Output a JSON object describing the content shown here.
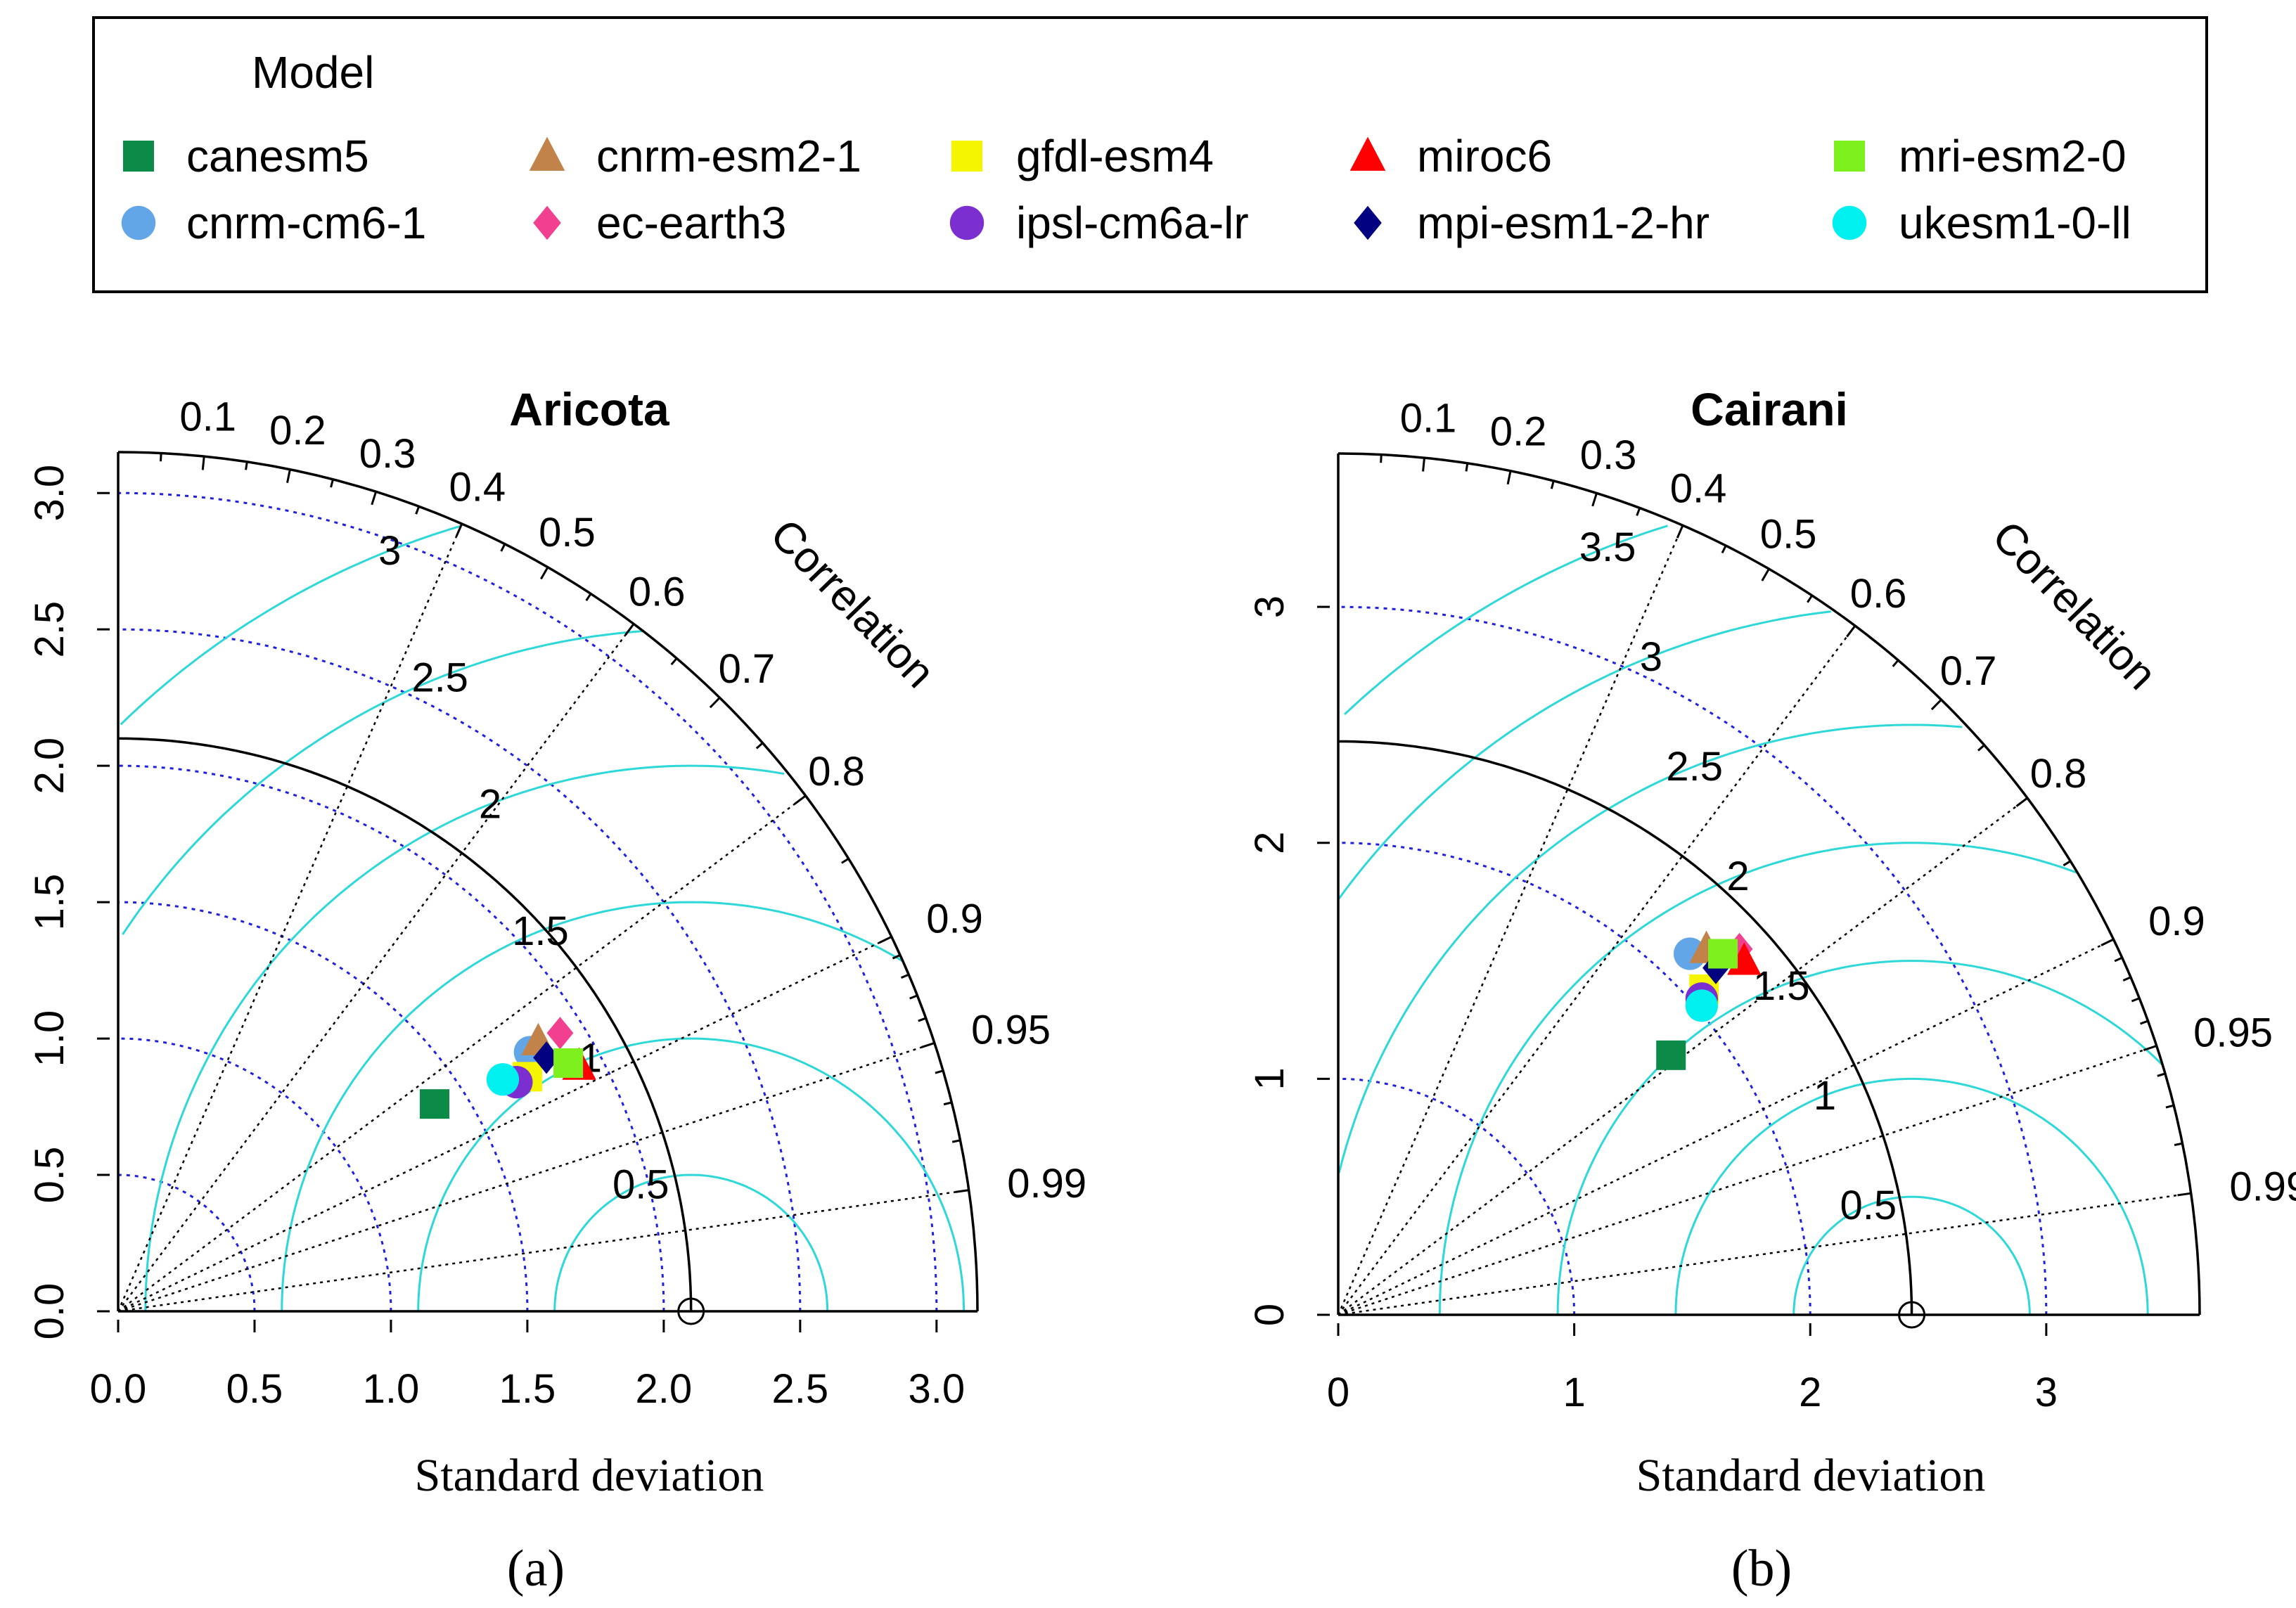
{
  "legend": {
    "title": "Model",
    "entries": [
      {
        "name": "canesm5",
        "color": "#0b8a48",
        "shape": "square"
      },
      {
        "name": "cnrm-esm2-1",
        "color": "#c1834a",
        "shape": "triangle"
      },
      {
        "name": "gfdl-esm4",
        "color": "#f5f500",
        "shape": "square"
      },
      {
        "name": "miroc6",
        "color": "#ff0000",
        "shape": "triangle"
      },
      {
        "name": "mri-esm2-0",
        "color": "#7ef01e",
        "shape": "square"
      },
      {
        "name": "cnrm-cm6-1",
        "color": "#62a6e8",
        "shape": "circle"
      },
      {
        "name": "ec-earth3",
        "color": "#f0408f",
        "shape": "diamond"
      },
      {
        "name": "ipsl-cm6a-lr",
        "color": "#7b2fd1",
        "shape": "circle"
      },
      {
        "name": "mpi-esm1-2-hr",
        "color": "#000080",
        "shape": "diamond"
      },
      {
        "name": "ukesm1-0-ll",
        "color": "#00f0f0",
        "shape": "circle"
      }
    ]
  },
  "chart_data": [
    {
      "type": "taylor",
      "panel_label": "(a)",
      "title": "Aricota",
      "xlabel": "Standard deviation",
      "correlation_label": "Correlation",
      "sd_max": 3.15,
      "ref_sd": 2.1,
      "sd_ticks": [
        "0.0",
        "0.5",
        "1.0",
        "1.5",
        "2.0",
        "2.5",
        "3.0"
      ],
      "sd_tick_values": [
        0,
        0.5,
        1.0,
        1.5,
        2.0,
        2.5,
        3.0
      ],
      "sd_contours": [
        0.5,
        1.0,
        1.5,
        2.0,
        2.5,
        3.0
      ],
      "rms_contours": [
        0.5,
        1,
        1.5,
        2,
        2.5,
        3
      ],
      "rms_labels": [
        "0.5",
        "1",
        "1.5",
        "2",
        "2.5",
        "3"
      ],
      "corr_labels": [
        "0.1",
        "0.2",
        "0.3",
        "0.4",
        "0.5",
        "0.6",
        "0.7",
        "0.8",
        "0.9",
        "0.95",
        "0.99"
      ],
      "corr_label_values": [
        0.1,
        0.2,
        0.3,
        0.4,
        0.5,
        0.6,
        0.7,
        0.8,
        0.9,
        0.95,
        0.99
      ],
      "corr_ray_values": [
        0.4,
        0.6,
        0.8,
        0.9,
        0.95,
        0.99
      ],
      "points": [
        {
          "model": "canesm5",
          "x": 1.16,
          "y": 0.76
        },
        {
          "model": "cnrm-cm6-1",
          "x": 1.51,
          "y": 0.95
        },
        {
          "model": "cnrm-esm2-1",
          "x": 1.54,
          "y": 0.99
        },
        {
          "model": "ec-earth3",
          "x": 1.62,
          "y": 1.02
        },
        {
          "model": "gfdl-esm4",
          "x": 1.5,
          "y": 0.86
        },
        {
          "model": "ipsl-cm6a-lr",
          "x": 1.46,
          "y": 0.84
        },
        {
          "model": "miroc6",
          "x": 1.69,
          "y": 0.9
        },
        {
          "model": "mpi-esm1-2-hr",
          "x": 1.57,
          "y": 0.93
        },
        {
          "model": "mri-esm2-0",
          "x": 1.65,
          "y": 0.91
        },
        {
          "model": "ukesm1-0-ll",
          "x": 1.41,
          "y": 0.85
        }
      ]
    },
    {
      "type": "taylor",
      "panel_label": "(b)",
      "title": "Cairani",
      "xlabel": "Standard deviation",
      "correlation_label": "Correlation",
      "sd_max": 3.65,
      "ref_sd": 2.43,
      "sd_ticks": [
        "0",
        "1",
        "2",
        "3"
      ],
      "sd_tick_values": [
        0,
        1,
        2,
        3
      ],
      "sd_contours": [
        1,
        2,
        3
      ],
      "rms_contours": [
        0.5,
        1,
        1.5,
        2,
        2.5,
        3,
        3.5
      ],
      "rms_labels": [
        "0.5",
        "1",
        "1.5",
        "2",
        "2.5",
        "3",
        "3.5"
      ],
      "corr_labels": [
        "0.1",
        "0.2",
        "0.3",
        "0.4",
        "0.5",
        "0.6",
        "0.7",
        "0.8",
        "0.9",
        "0.95",
        "0.99"
      ],
      "corr_label_values": [
        0.1,
        0.2,
        0.3,
        0.4,
        0.5,
        0.6,
        0.7,
        0.8,
        0.9,
        0.95,
        0.99
      ],
      "corr_ray_values": [
        0.4,
        0.6,
        0.8,
        0.9,
        0.95,
        0.99
      ],
      "points": [
        {
          "model": "canesm5",
          "x": 1.41,
          "y": 1.1
        },
        {
          "model": "cnrm-cm6-1",
          "x": 1.49,
          "y": 1.53
        },
        {
          "model": "cnrm-esm2-1",
          "x": 1.56,
          "y": 1.55
        },
        {
          "model": "ec-earth3",
          "x": 1.7,
          "y": 1.55
        },
        {
          "model": "gfdl-esm4",
          "x": 1.55,
          "y": 1.38
        },
        {
          "model": "ipsl-cm6a-lr",
          "x": 1.54,
          "y": 1.34
        },
        {
          "model": "miroc6",
          "x": 1.72,
          "y": 1.5
        },
        {
          "model": "mpi-esm1-2-hr",
          "x": 1.6,
          "y": 1.47
        },
        {
          "model": "mri-esm2-0",
          "x": 1.63,
          "y": 1.53
        },
        {
          "model": "ukesm1-0-ll",
          "x": 1.54,
          "y": 1.31
        }
      ]
    }
  ]
}
